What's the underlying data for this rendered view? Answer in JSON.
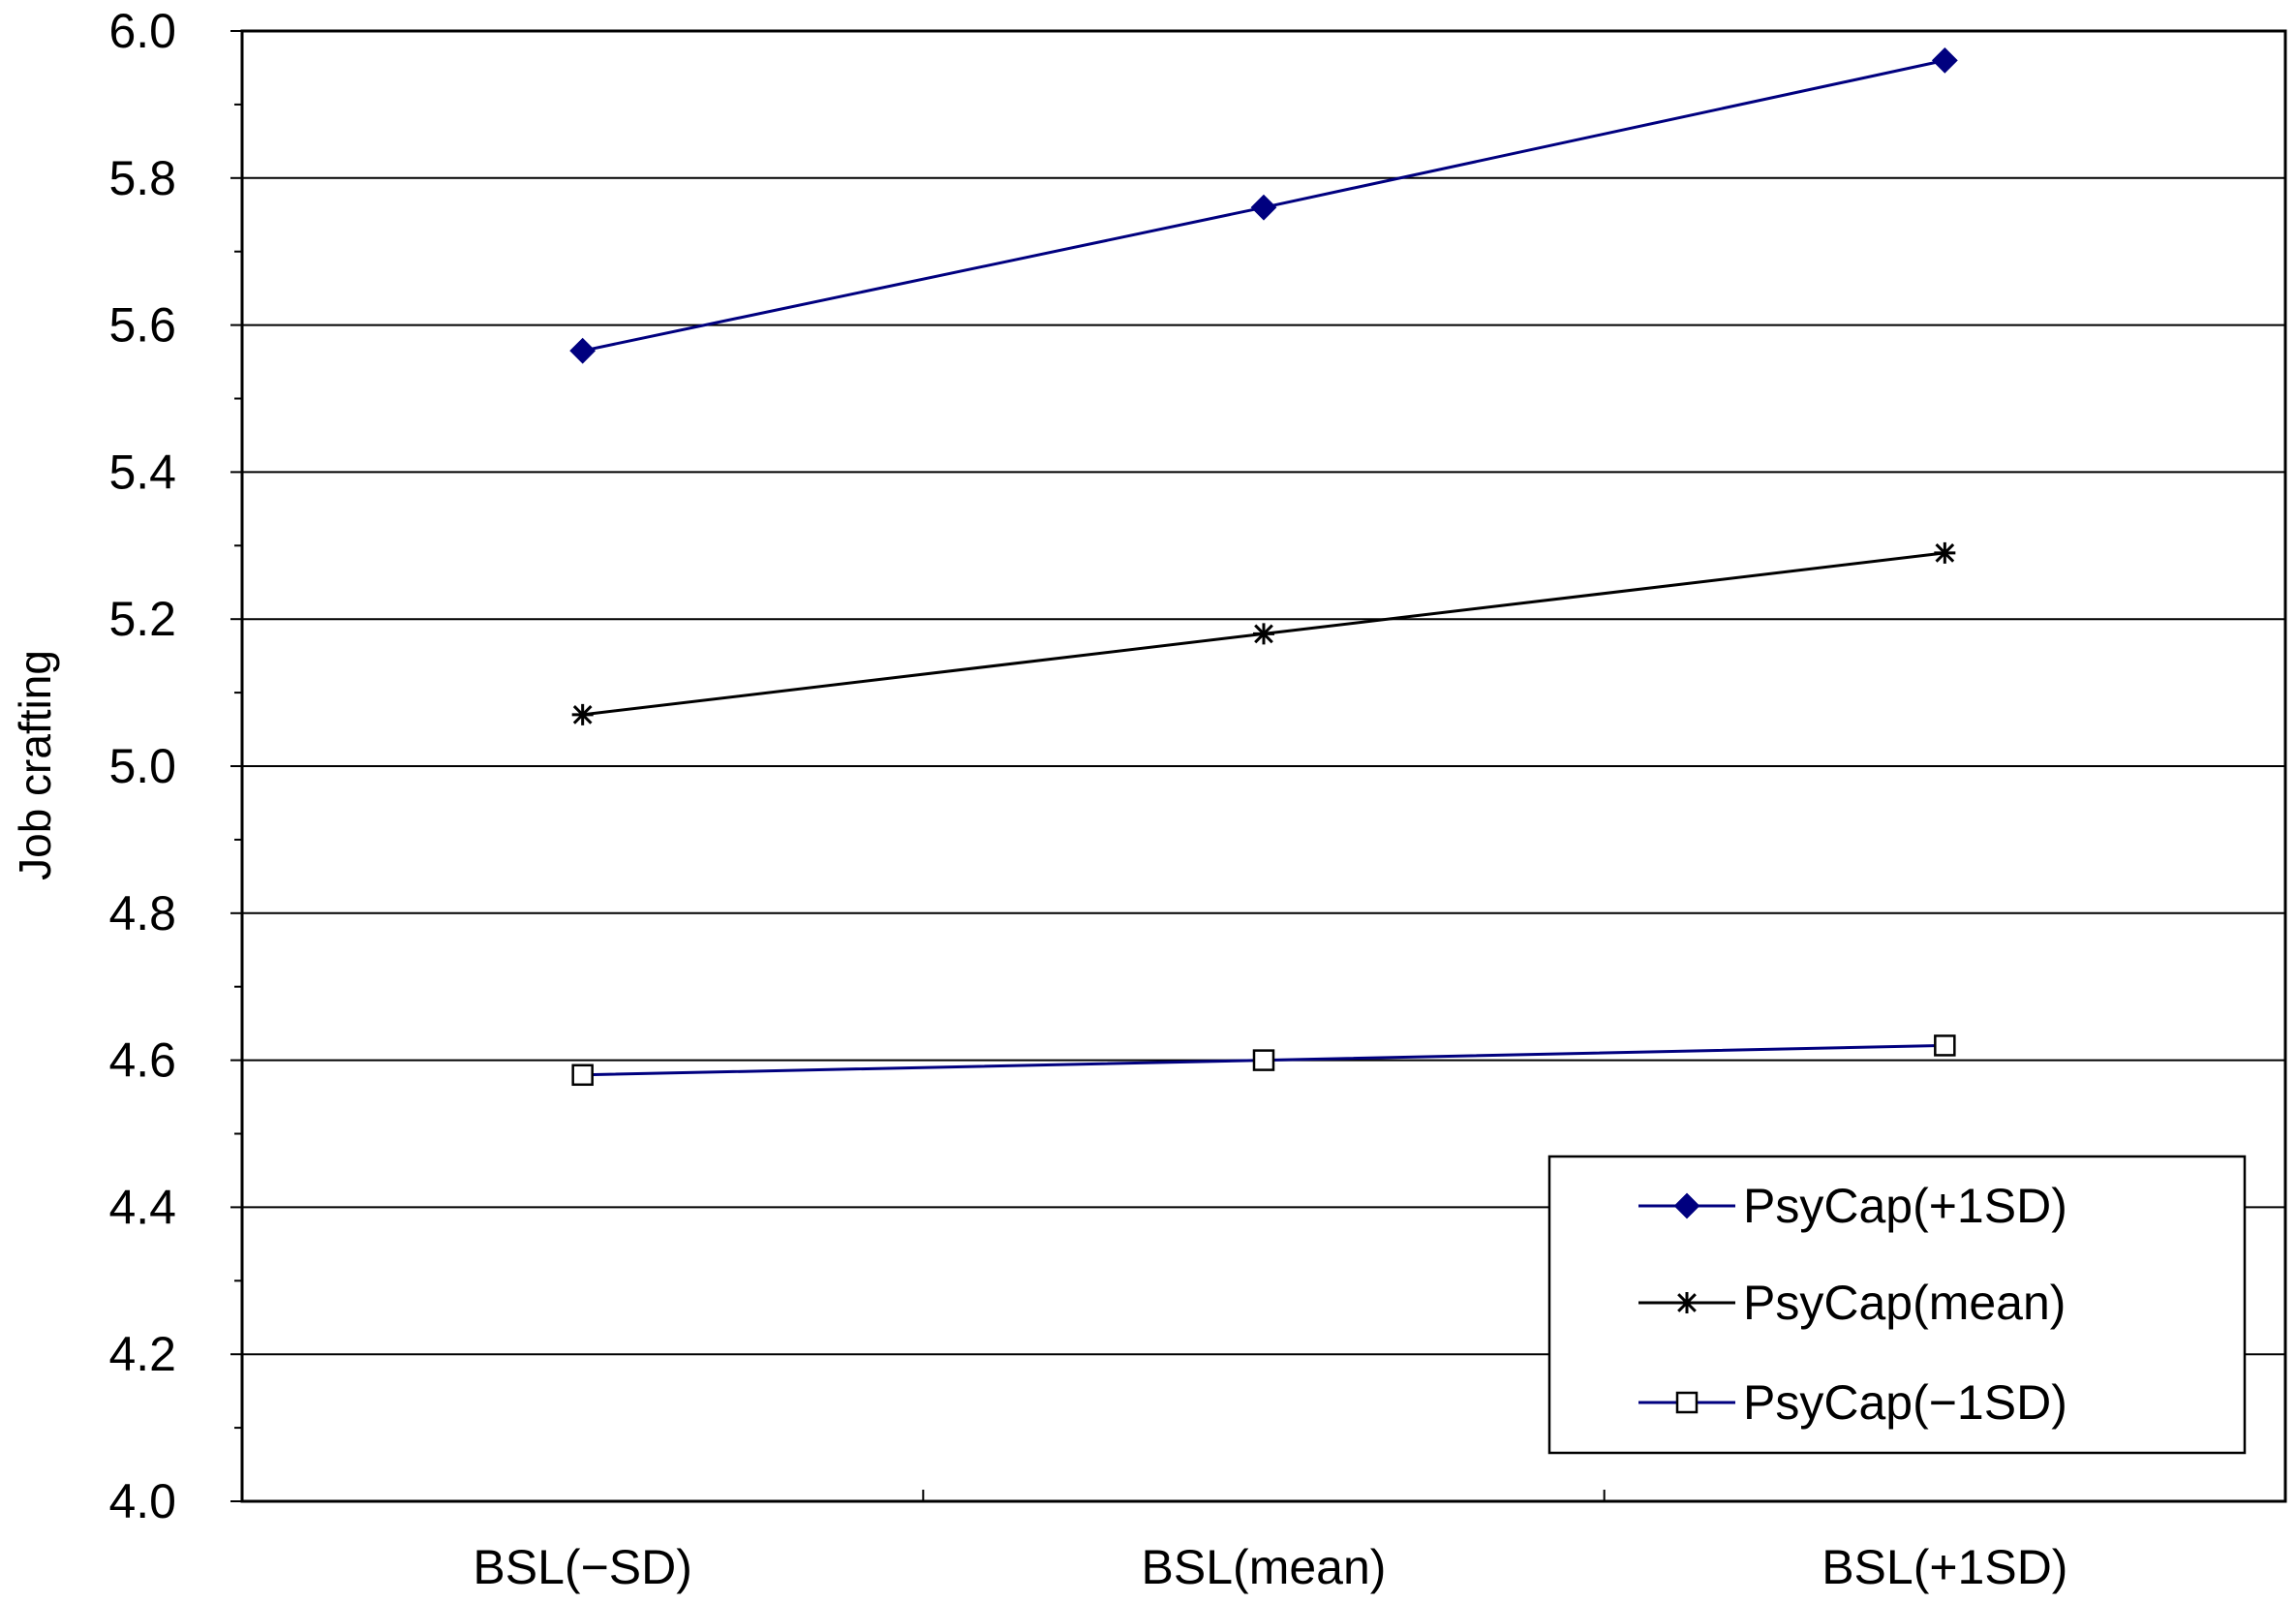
{
  "chart_data": {
    "type": "line",
    "ylabel": "Job crafting",
    "xlabel": "",
    "categories": [
      "BSL(−SD)",
      "BSL(mean)",
      "BSL(+1SD)"
    ],
    "ylim": [
      4.0,
      6.0
    ],
    "y_major_ticks": [
      4.0,
      4.2,
      4.4,
      4.6,
      4.8,
      5.0,
      5.2,
      5.4,
      5.6,
      5.8,
      6.0
    ],
    "y_tick_labels": [
      "4.0",
      "4.2",
      "4.4",
      "4.6",
      "4.8",
      "5.0",
      "5.2",
      "5.4",
      "5.6",
      "5.8",
      "6.0"
    ],
    "grid": true,
    "legend_position": "bottom-right",
    "series": [
      {
        "name": "PsyCap(+1SD)",
        "values": [
          5.565,
          5.76,
          5.96
        ],
        "color": "#00007f",
        "marker": "diamond"
      },
      {
        "name": "PsyCap(mean)",
        "values": [
          5.07,
          5.18,
          5.29
        ],
        "color": "#000000",
        "marker": "asterisk"
      },
      {
        "name": "PsyCap(−1SD)",
        "values": [
          4.58,
          4.6,
          4.62
        ],
        "color": "#00007f",
        "marker": "open-square"
      }
    ]
  }
}
